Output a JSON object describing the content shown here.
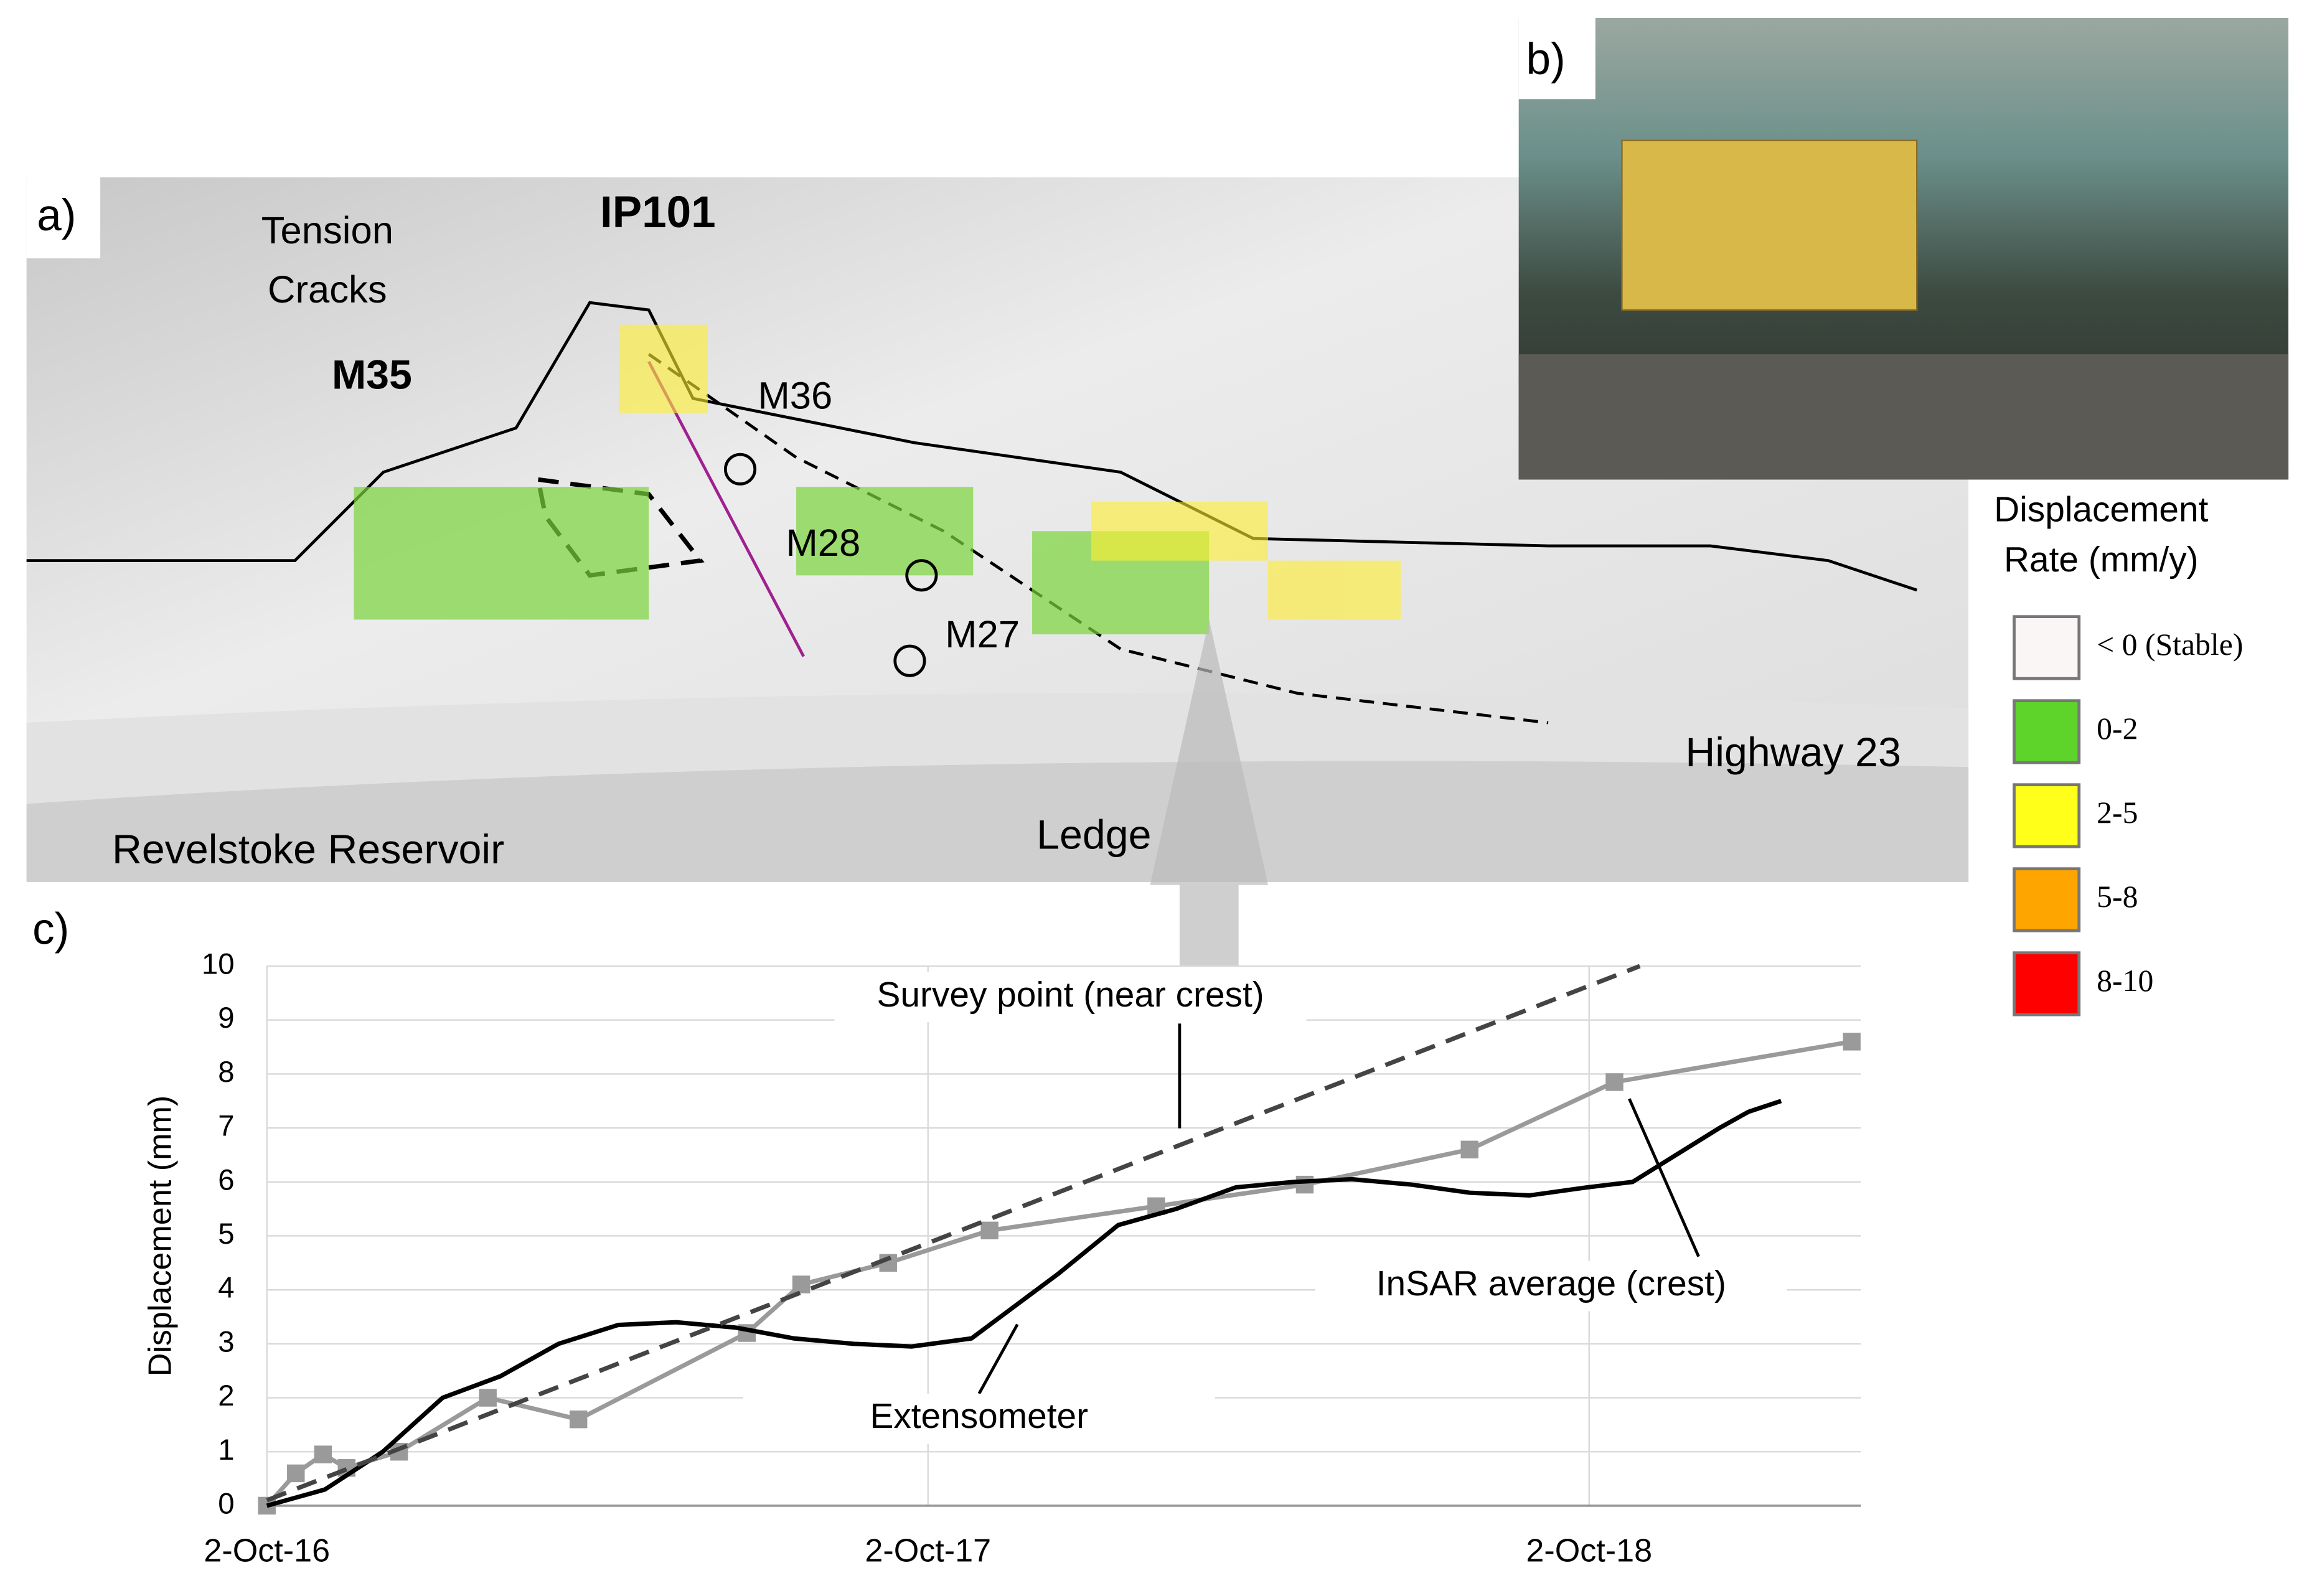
{
  "panel_labels": [
    "a)",
    "b)",
    "c)"
  ],
  "map": {
    "labels": {
      "tension_cracks": [
        "Tension",
        "Cracks"
      ],
      "ip101": "IP101",
      "m35": "M35",
      "m36": "M36",
      "m28": "M28",
      "m27": "M27",
      "ledge": "Ledge",
      "highway": "Highway 23",
      "reservoir": "Revelstoke Reservoir"
    },
    "legend": {
      "title": [
        "Displacement",
        "Rate (mm/y)"
      ],
      "items": [
        {
          "label": "< 0 (Stable)",
          "color": "#fbf6f6"
        },
        {
          "label": "0-2",
          "color": "#5ed42a"
        },
        {
          "label": "2-5",
          "color": "#ffff1a"
        },
        {
          "label": "5-8",
          "color": "#ffa500"
        },
        {
          "label": "8-10",
          "color": "#ff0000"
        }
      ]
    }
  },
  "chart_data": {
    "type": "line",
    "y_label": "Displacement (mm)",
    "xlim": [
      "2016-10-02",
      "2019-03-01"
    ],
    "xticks": [
      {
        "value": "2016-10-02",
        "label": "2-Oct-16"
      },
      {
        "value": "2017-10-02",
        "label": "2-Oct-17"
      },
      {
        "value": "2018-10-02",
        "label": "2-Oct-18"
      }
    ],
    "ylim": [
      0,
      10
    ],
    "yticks": [
      0,
      1,
      2,
      3,
      4,
      5,
      6,
      7,
      8,
      9,
      10
    ],
    "grid": true,
    "series": [
      {
        "name": "InSAR average (crest)",
        "color": "#9a9a9a",
        "marker": "square",
        "x": [
          "2016-10-02",
          "2016-10-18",
          "2016-11-02",
          "2016-11-15",
          "2016-12-14",
          "2017-02-01",
          "2017-03-23",
          "2017-06-24",
          "2017-07-24",
          "2017-09-10",
          "2017-11-05",
          "2018-02-05",
          "2018-04-28",
          "2018-07-28",
          "2018-10-16",
          "2019-02-24"
        ],
        "values": [
          0,
          0.6,
          0.95,
          0.7,
          1.0,
          2.0,
          1.6,
          3.2,
          4.1,
          4.5,
          5.1,
          5.55,
          5.95,
          6.6,
          7.85,
          8.6
        ]
      },
      {
        "name": "Extensometer",
        "color": "#000000",
        "x": [
          "2016-10-02",
          "2016-11-03",
          "2016-12-05",
          "2017-01-07",
          "2017-02-08",
          "2017-03-12",
          "2017-04-14",
          "2017-05-16",
          "2017-06-18",
          "2017-07-20",
          "2017-08-22",
          "2017-09-23",
          "2017-10-26",
          "2017-11-19",
          "2017-12-13",
          "2018-01-15",
          "2018-02-16",
          "2018-03-21",
          "2018-04-22",
          "2018-05-24",
          "2018-06-26",
          "2018-07-28",
          "2018-08-30",
          "2018-10-01",
          "2018-10-26",
          "2018-11-19",
          "2018-12-13",
          "2018-12-29",
          "2019-01-16"
        ],
        "values": [
          0,
          0.3,
          1.0,
          2.0,
          2.4,
          3.0,
          3.35,
          3.4,
          3.3,
          3.1,
          3.0,
          2.95,
          3.1,
          3.7,
          4.3,
          5.2,
          5.5,
          5.9,
          6.0,
          6.05,
          5.95,
          5.8,
          5.75,
          5.9,
          6.0,
          6.5,
          7.0,
          7.3,
          7.5
        ]
      },
      {
        "name": "Survey point (near crest)",
        "color": "#444444",
        "dash": true,
        "x": [
          "2016-10-02",
          "2018-10-30"
        ],
        "values": [
          0.1,
          10
        ]
      }
    ]
  }
}
